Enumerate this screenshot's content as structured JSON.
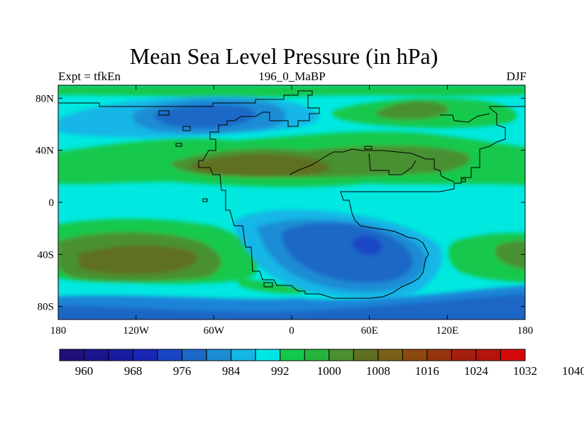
{
  "title": "Mean Sea Level Pressure (in hPa)",
  "subtitle_left": "Expt = tfkEn",
  "subtitle_center": "196_0_MaBP",
  "subtitle_right": "DJF",
  "map": {
    "projection": "cylindrical-equidistant",
    "lon_range": [
      -180,
      180
    ],
    "lat_range": [
      -90,
      90
    ],
    "x_ticks": [
      {
        "value": -180,
        "label": "180"
      },
      {
        "value": -120,
        "label": "120W"
      },
      {
        "value": -60,
        "label": "60W"
      },
      {
        "value": 0,
        "label": "0"
      },
      {
        "value": 60,
        "label": "60E"
      },
      {
        "value": 120,
        "label": "120E"
      },
      {
        "value": 180,
        "label": "180"
      }
    ],
    "y_ticks": [
      {
        "value": 80,
        "label": "80N"
      },
      {
        "value": 40,
        "label": "40N"
      },
      {
        "value": 0,
        "label": "0"
      },
      {
        "value": -40,
        "label": "40S"
      },
      {
        "value": -80,
        "label": "80S"
      }
    ],
    "background_color": "#00e8e0",
    "coastline_color": "#000000"
  },
  "colorbar": {
    "colors": [
      "#20107a",
      "#1a1690",
      "#181ca0",
      "#1828b4",
      "#1a46c4",
      "#1c68c6",
      "#1e8cd4",
      "#14b6e6",
      "#00e6e6",
      "#14c84c",
      "#28b43c",
      "#4a9030",
      "#5e7024",
      "#7a6018",
      "#8c4a10",
      "#983410",
      "#a4200e",
      "#b4140c",
      "#d40a0a"
    ],
    "labels": [
      {
        "index": 1,
        "text": "960"
      },
      {
        "index": 3,
        "text": "968"
      },
      {
        "index": 5,
        "text": "976"
      },
      {
        "index": 7,
        "text": "984"
      },
      {
        "index": 9,
        "text": "992"
      },
      {
        "index": 11,
        "text": "1000"
      },
      {
        "index": 13,
        "text": "1008"
      },
      {
        "index": 15,
        "text": "1016"
      },
      {
        "index": 17,
        "text": "1024"
      },
      {
        "index": 19,
        "text": "1032"
      },
      {
        "index": 21,
        "text": "1040"
      }
    ]
  }
}
